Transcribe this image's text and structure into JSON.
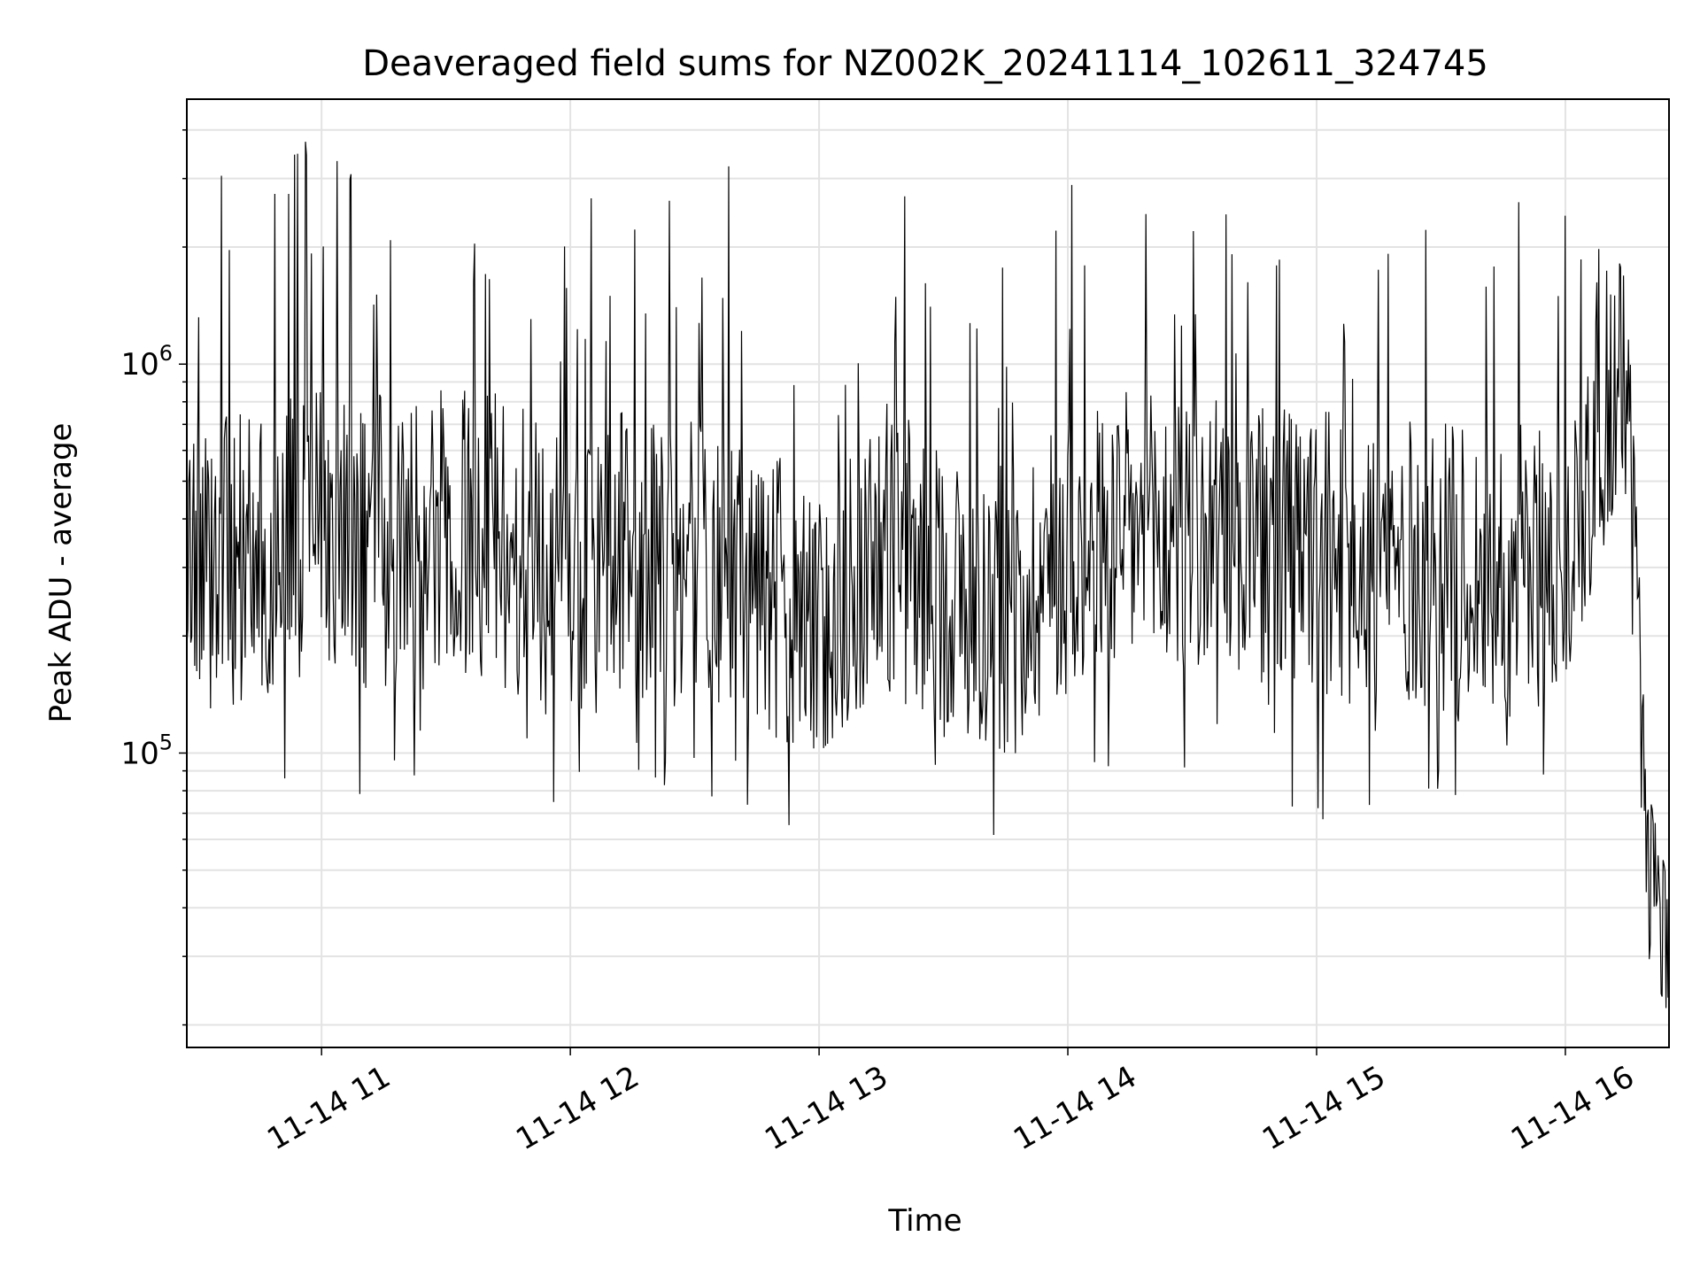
{
  "chart_data": {
    "type": "line",
    "title": "Deaveraged field sums for NZ002K_20241114_102611_324745",
    "xlabel": "Time",
    "ylabel": "Peak ADU - average",
    "y_scale": "log",
    "ylim": [
      17500,
      4800000
    ],
    "xlim": [
      "2024-11-14 10:27:30",
      "2024-11-14 16:25:00"
    ],
    "x_tick_labels": [
      "11-14 11",
      "11-14 12",
      "11-14 13",
      "11-14 14",
      "11-14 15",
      "11-14 16"
    ],
    "x_ticks": [
      "2024-11-14 11:00",
      "2024-11-14 12:00",
      "2024-11-14 13:00",
      "2024-11-14 14:00",
      "2024-11-14 15:00",
      "2024-11-14 16:00"
    ],
    "y_tick_labels": [
      {
        "base": "10",
        "exp": "5"
      },
      {
        "base": "10",
        "exp": "6"
      }
    ],
    "y_ticks": [
      100000,
      1000000
    ],
    "grid": true,
    "line_color": "#000000",
    "series": [
      {
        "x": [
          "2024-11-14 10:27:30",
          "2024-11-14 10:45:00",
          "2024-11-14 11:00:00",
          "2024-11-14 11:15:00",
          "2024-11-14 11:30:00",
          "2024-11-14 11:45:00",
          "2024-11-14 12:00:00",
          "2024-11-14 12:15:00",
          "2024-11-14 12:30:00",
          "2024-11-14 12:45:00",
          "2024-11-14 13:00:00",
          "2024-11-14 13:15:00",
          "2024-11-14 13:30:00",
          "2024-11-14 13:45:00",
          "2024-11-14 14:00:00",
          "2024-11-14 14:15:00",
          "2024-11-14 14:30:00",
          "2024-11-14 14:45:00",
          "2024-11-14 15:00:00",
          "2024-11-14 15:15:00",
          "2024-11-14 15:30:00",
          "2024-11-14 15:45:00",
          "2024-11-14 16:00:00",
          "2024-11-14 16:10:00",
          "2024-11-14 16:15:00",
          "2024-11-14 16:20:00",
          "2024-11-14 16:25:00"
        ],
        "y": [
          300000,
          320000,
          400000,
          350000,
          380000,
          350000,
          260000,
          330000,
          300000,
          280000,
          190000,
          350000,
          260000,
          230000,
          330000,
          360000,
          350000,
          340000,
          320000,
          310000,
          300000,
          290000,
          310000,
          800000,
          900000,
          50000,
          30000
        ],
        "y_min": [
          190000,
          60000,
          110000,
          55000,
          120000,
          120000,
          60000,
          80000,
          80000,
          38000,
          100000,
          150000,
          80000,
          47000,
          47000,
          55000,
          80000,
          80000,
          52000,
          60000,
          80000,
          48000,
          100000,
          260000,
          170000,
          30000,
          21000
        ],
        "y_max": [
          2800000,
          3400000,
          3900000,
          3000000,
          3900000,
          3600000,
          2400000,
          3500000,
          3600000,
          3400000,
          700000,
          2800000,
          2600000,
          1800000,
          3500000,
          2800000,
          2500000,
          2400000,
          1800000,
          2300000,
          2500000,
          2800000,
          2800000,
          3400000,
          1500000,
          80000,
          45000
        ]
      }
    ]
  }
}
